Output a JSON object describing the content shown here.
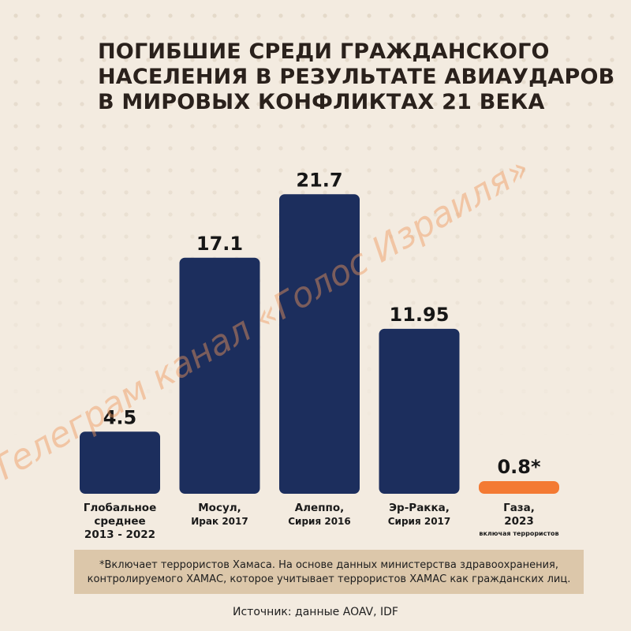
{
  "title_lines": [
    "ПОГИБШИЕ СРЕДИ ГРАЖДАНСКОГО",
    "НАСЕЛЕНИЯ В РЕЗУЛЬТАТЕ АВИАУДАРОВ",
    "В МИРОВЫХ КОНФЛИКТАХ 21 ВЕКА"
  ],
  "footnote": "*Включает террористов Хамаса. На основе данных министерства здравоохранения, контролируемого ХАМАС, которое учитывает террористов ХАМАС как гражданских лиц.",
  "source": "Источник: данные AOAV, IDF",
  "watermark": "Телеграм канал «Голос Израиля»",
  "colors": {
    "bar": "#1c2e5d",
    "highlight": "#f37a33",
    "text": "#1e1e1e"
  },
  "chart_data": {
    "type": "bar",
    "title": "ПОГИБШИЕ СРЕДИ ГРАЖДАНСКОГО НАСЕЛЕНИЯ В РЕЗУЛЬТАТЕ АВИАУДАРОВ В МИРОВЫХ КОНФЛИКТАХ 21 ВЕКА",
    "xlabel": "",
    "ylabel": "",
    "ylim": [
      0,
      22
    ],
    "grid": false,
    "legend": "none",
    "categories": [
      {
        "lines": [
          "Глобальное",
          "среднее",
          "2013 - 2022"
        ],
        "sub": ""
      },
      {
        "lines": [
          "Мосул,"
        ],
        "sub": "Ирак 2017"
      },
      {
        "lines": [
          "Алеппо,"
        ],
        "sub": "Сирия 2016"
      },
      {
        "lines": [
          "Эр-Ракка,"
        ],
        "sub": "Сирия 2017"
      },
      {
        "lines": [
          "Газа,",
          "2023"
        ],
        "sub": "включая террористов"
      }
    ],
    "values": [
      4.5,
      17.1,
      21.7,
      11.95,
      0.8
    ],
    "value_labels": [
      "4.5",
      "17.1",
      "21.7",
      "11.95",
      "0.8*"
    ],
    "highlight_index": 4
  }
}
